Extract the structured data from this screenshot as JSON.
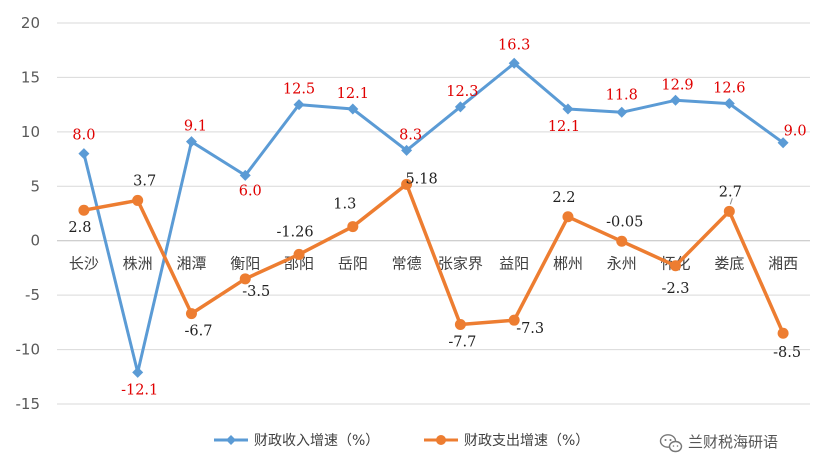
{
  "chart_data": {
    "type": "line",
    "categories": [
      "长沙",
      "株洲",
      "湘潭",
      "衡阳",
      "邵阳",
      "岳阳",
      "常德",
      "张家界",
      "益阳",
      "郴州",
      "永州",
      "怀化",
      "娄底",
      "湘西"
    ],
    "series": [
      {
        "name": "财政收入增速（%）",
        "color": "#5b9bd5",
        "label_color": "#e00000",
        "values": [
          8.0,
          -12.1,
          9.1,
          6.0,
          12.5,
          12.1,
          8.3,
          12.3,
          16.3,
          12.1,
          11.8,
          12.9,
          12.6,
          9.0
        ],
        "labels": [
          "8.0",
          "-12.1",
          "9.1",
          "6.0",
          "12.5",
          "12.1",
          "8.3",
          "12.3",
          "16.3",
          "12.1",
          "11.8",
          "12.9",
          "12.6",
          "9.0"
        ]
      },
      {
        "name": "财政支出增速（%）",
        "color": "#ed7d31",
        "label_color": "#222222",
        "values": [
          2.8,
          3.7,
          -6.7,
          -3.5,
          -1.26,
          1.3,
          5.18,
          -7.7,
          -7.3,
          2.2,
          -0.05,
          -2.3,
          2.7,
          -8.5
        ],
        "labels": [
          "2.8",
          "3.7",
          "-6.7",
          "-3.5",
          "-1.26",
          "1.3",
          "5.18",
          "-7.7",
          "-7.3",
          "2.2",
          "-0.05",
          "-2.3",
          "2.7",
          "-8.5"
        ]
      }
    ],
    "ylim": [
      -15,
      20
    ],
    "yticks": [
      "20",
      "15",
      "10",
      "5",
      "0",
      "-5",
      "-10",
      "-15"
    ],
    "grid": true,
    "legend_position": "bottom",
    "title": "",
    "xlabel": "",
    "ylabel": ""
  },
  "watermark": {
    "text": "兰财税海研语",
    "icon": "wechat-icon"
  }
}
